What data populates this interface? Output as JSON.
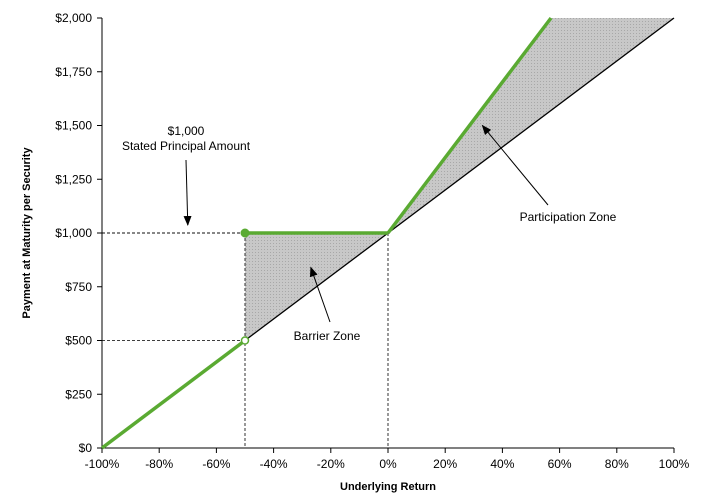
{
  "chart_data": {
    "type": "line",
    "xlabel": "Underlying Return",
    "ylabel": "Payment at Maturity per Security",
    "xlim": [
      -100,
      100
    ],
    "ylim": [
      0,
      2000
    ],
    "x_ticks": [
      "-100%",
      "-80%",
      "-60%",
      "-40%",
      "-20%",
      "0%",
      "20%",
      "40%",
      "60%",
      "80%",
      "100%"
    ],
    "y_ticks": [
      "$0",
      "$250",
      "$500",
      "$750",
      "$1,000",
      "$1,250",
      "$1,500",
      "$1,750",
      "$2,000"
    ],
    "grid": false,
    "colors": {
      "payoff": "#5aaa32",
      "shade": "#bfbfbf",
      "underlying": "#000000"
    },
    "series": [
      {
        "role": "underlying",
        "x": [
          -100,
          100
        ],
        "y": [
          0,
          2000
        ]
      },
      {
        "role": "payoff-low",
        "x": [
          -100,
          -50
        ],
        "y": [
          0,
          500
        ]
      },
      {
        "role": "payoff-barrier",
        "x": [
          -50,
          0
        ],
        "y": [
          1000,
          1000
        ]
      },
      {
        "role": "payoff-participation",
        "x": [
          0,
          57
        ],
        "y": [
          1000,
          2000
        ]
      }
    ],
    "markers": {
      "filled": {
        "x": -50,
        "y": 1000
      },
      "open": {
        "x": -50,
        "y": 500
      }
    },
    "dashed_guides": [
      {
        "x": -50,
        "y": 1000
      },
      {
        "x": -50,
        "y": 500
      },
      {
        "x": 0,
        "y": 1000
      }
    ],
    "annotations": [
      {
        "lines": [
          "$1,000",
          "Stated Principal Amount"
        ],
        "arrow_target": {
          "x": -70,
          "y": 1000
        }
      },
      {
        "lines": [
          "Barrier Zone"
        ],
        "arrow_target": {
          "x": -27,
          "y": 840
        }
      },
      {
        "lines": [
          "Participation Zone"
        ],
        "arrow_target": {
          "x": 33,
          "y": 1500
        }
      }
    ]
  }
}
